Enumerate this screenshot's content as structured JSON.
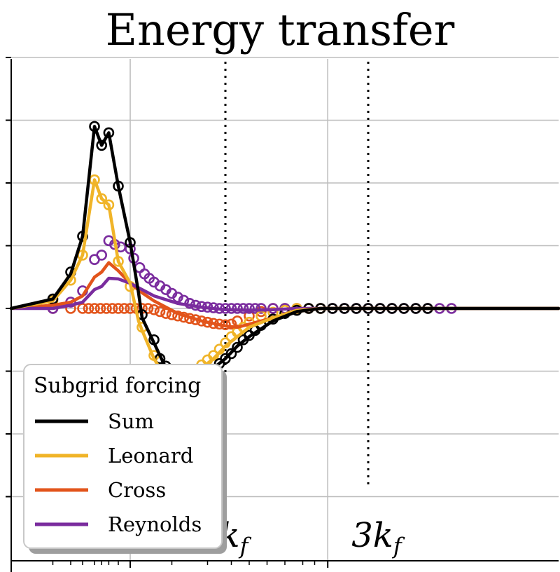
{
  "chart_data": {
    "type": "line",
    "title": "Energy transfer",
    "xscale": "log",
    "xlim": [
      1,
      5.6
    ],
    "ylim": [
      -3,
      4
    ],
    "grid": true,
    "legend": {
      "title": "Subgrid forcing",
      "placement": "bottom-left",
      "entries": [
        "Sum",
        "Leonard",
        "Cross",
        "Reynolds"
      ]
    },
    "vlines": [
      {
        "label_main": "k",
        "label_sub": "f",
        "x": 2.8
      },
      {
        "label_main": "3k",
        "label_sub": "f",
        "x": 4.0
      }
    ],
    "colors": {
      "Sum": "#000000",
      "Leonard": "#f0b428",
      "Cross": "#e2541b",
      "Reynolds": "#7a2c9e",
      "grid": "#bdbdbd"
    },
    "series": [
      {
        "name": "Sum",
        "line": [
          [
            1.0,
            0.0
          ],
          [
            1.35,
            0.15
          ],
          [
            1.5,
            0.55
          ],
          [
            1.6,
            1.15
          ],
          [
            1.7,
            2.9
          ],
          [
            1.76,
            2.6
          ],
          [
            1.82,
            2.8
          ],
          [
            1.9,
            1.95
          ],
          [
            2.0,
            1.05
          ],
          [
            2.07,
            0.25
          ],
          [
            2.1,
            -0.15
          ],
          [
            2.2,
            -0.55
          ],
          [
            2.3,
            -0.95
          ],
          [
            2.35,
            -1.0
          ],
          [
            2.4,
            -1.12
          ],
          [
            2.45,
            -1.15
          ],
          [
            2.5,
            -1.18
          ],
          [
            2.6,
            -1.1
          ],
          [
            2.7,
            -0.95
          ],
          [
            2.8,
            -0.8
          ],
          [
            2.9,
            -0.6
          ],
          [
            3.0,
            -0.45
          ],
          [
            3.2,
            -0.2
          ],
          [
            3.4,
            -0.05
          ],
          [
            3.6,
            0.0
          ],
          [
            4.0,
            0.0
          ],
          [
            5.6,
            0.0
          ]
        ],
        "points": [
          [
            1.35,
            0.15
          ],
          [
            1.5,
            0.58
          ],
          [
            1.6,
            1.15
          ],
          [
            1.7,
            2.9
          ],
          [
            1.76,
            2.6
          ],
          [
            1.82,
            2.8
          ],
          [
            1.9,
            1.95
          ],
          [
            2.0,
            1.05
          ],
          [
            2.1,
            -0.1
          ],
          [
            2.2,
            -0.5
          ],
          [
            2.25,
            -0.8
          ],
          [
            2.3,
            -0.92
          ],
          [
            2.35,
            -1.0
          ],
          [
            2.4,
            -1.1
          ],
          [
            2.45,
            -1.2
          ],
          [
            2.5,
            -1.18
          ],
          [
            2.55,
            -1.15
          ],
          [
            2.6,
            -1.12
          ],
          [
            2.65,
            -1.08
          ],
          [
            2.7,
            -0.97
          ],
          [
            2.75,
            -0.88
          ],
          [
            2.8,
            -0.8
          ],
          [
            2.85,
            -0.72
          ],
          [
            2.9,
            -0.62
          ],
          [
            2.95,
            -0.5
          ],
          [
            3.0,
            -0.43
          ],
          [
            3.05,
            -0.35
          ],
          [
            3.1,
            -0.27
          ],
          [
            3.2,
            -0.17
          ],
          [
            3.3,
            -0.08
          ],
          [
            3.4,
            -0.03
          ],
          [
            3.5,
            0.0
          ],
          [
            3.6,
            0.0
          ],
          [
            3.7,
            0.0
          ],
          [
            3.8,
            0.0
          ],
          [
            3.9,
            0.0
          ],
          [
            4.0,
            0.0
          ],
          [
            4.1,
            0.0
          ],
          [
            4.2,
            0.0
          ],
          [
            4.3,
            0.0
          ],
          [
            4.4,
            0.0
          ],
          [
            4.5,
            0.0
          ]
        ]
      },
      {
        "name": "Leonard",
        "line": [
          [
            1.0,
            0.0
          ],
          [
            1.35,
            0.12
          ],
          [
            1.5,
            0.45
          ],
          [
            1.6,
            0.85
          ],
          [
            1.7,
            2.05
          ],
          [
            1.76,
            1.75
          ],
          [
            1.82,
            1.65
          ],
          [
            1.9,
            0.75
          ],
          [
            2.0,
            0.4
          ],
          [
            2.07,
            -0.2
          ],
          [
            2.1,
            -0.35
          ],
          [
            2.2,
            -0.8
          ],
          [
            2.3,
            -1.12
          ],
          [
            2.35,
            -1.05
          ],
          [
            2.4,
            -1.15
          ],
          [
            2.45,
            -1.1
          ],
          [
            2.5,
            -1.05
          ],
          [
            2.6,
            -0.95
          ],
          [
            2.7,
            -0.8
          ],
          [
            2.8,
            -0.6
          ],
          [
            2.9,
            -0.45
          ],
          [
            3.0,
            -0.3
          ],
          [
            3.2,
            -0.15
          ],
          [
            3.4,
            -0.03
          ],
          [
            3.6,
            0.0
          ],
          [
            5.6,
            0.0
          ]
        ],
        "points": [
          [
            1.35,
            0.12
          ],
          [
            1.5,
            0.45
          ],
          [
            1.6,
            0.85
          ],
          [
            1.7,
            2.05
          ],
          [
            1.76,
            1.75
          ],
          [
            1.82,
            1.65
          ],
          [
            1.9,
            0.75
          ],
          [
            2.0,
            0.35
          ],
          [
            2.1,
            -0.3
          ],
          [
            2.2,
            -0.75
          ],
          [
            2.25,
            -0.95
          ],
          [
            2.3,
            -1.1
          ],
          [
            2.35,
            -1.12
          ],
          [
            2.4,
            -1.15
          ],
          [
            2.45,
            -1.08
          ],
          [
            2.5,
            -1.02
          ],
          [
            2.55,
            -0.98
          ],
          [
            2.6,
            -0.9
          ],
          [
            2.65,
            -0.82
          ],
          [
            2.7,
            -0.75
          ],
          [
            2.75,
            -0.65
          ],
          [
            2.8,
            -0.55
          ],
          [
            2.85,
            -0.45
          ],
          [
            2.9,
            -0.38
          ],
          [
            2.95,
            -0.3
          ],
          [
            3.0,
            -0.22
          ],
          [
            3.1,
            -0.12
          ],
          [
            3.2,
            -0.06
          ],
          [
            3.3,
            -0.03
          ],
          [
            3.4,
            0.0
          ],
          [
            3.5,
            0.0
          ],
          [
            3.6,
            0.0
          ]
        ]
      },
      {
        "name": "Cross",
        "line": [
          [
            1.0,
            0.0
          ],
          [
            1.35,
            0.05
          ],
          [
            1.5,
            0.1
          ],
          [
            1.6,
            0.2
          ],
          [
            1.7,
            0.5
          ],
          [
            1.76,
            0.58
          ],
          [
            1.82,
            0.73
          ],
          [
            1.9,
            0.6
          ],
          [
            2.0,
            0.4
          ],
          [
            2.1,
            0.25
          ],
          [
            2.2,
            0.12
          ],
          [
            2.4,
            -0.08
          ],
          [
            2.6,
            -0.2
          ],
          [
            2.8,
            -0.28
          ],
          [
            2.9,
            -0.3
          ],
          [
            3.0,
            -0.25
          ],
          [
            3.2,
            -0.15
          ],
          [
            3.4,
            -0.05
          ],
          [
            3.6,
            0.0
          ],
          [
            5.6,
            0.0
          ]
        ],
        "points": [
          [
            1.35,
            0.0
          ],
          [
            1.5,
            0.0
          ],
          [
            1.6,
            0.0
          ],
          [
            1.65,
            0.0
          ],
          [
            1.7,
            0.0
          ],
          [
            1.75,
            0.0
          ],
          [
            1.8,
            0.0
          ],
          [
            1.85,
            0.0
          ],
          [
            1.9,
            0.0
          ],
          [
            1.95,
            0.0
          ],
          [
            2.0,
            0.0
          ],
          [
            2.05,
            0.0
          ],
          [
            2.1,
            0.0
          ],
          [
            2.15,
            0.0
          ],
          [
            2.2,
            -0.02
          ],
          [
            2.25,
            -0.05
          ],
          [
            2.3,
            -0.08
          ],
          [
            2.35,
            -0.1
          ],
          [
            2.4,
            -0.12
          ],
          [
            2.45,
            -0.14
          ],
          [
            2.5,
            -0.16
          ],
          [
            2.55,
            -0.18
          ],
          [
            2.6,
            -0.2
          ],
          [
            2.65,
            -0.22
          ],
          [
            2.7,
            -0.24
          ],
          [
            2.75,
            -0.25
          ],
          [
            2.8,
            -0.26
          ],
          [
            2.85,
            -0.25
          ],
          [
            2.9,
            -0.2
          ],
          [
            3.0,
            -0.12
          ],
          [
            3.1,
            -0.05
          ],
          [
            3.2,
            0.0
          ],
          [
            3.3,
            0.0
          ],
          [
            3.4,
            0.0
          ]
        ]
      },
      {
        "name": "Reynolds",
        "line": [
          [
            1.0,
            0.0
          ],
          [
            1.35,
            0.0
          ],
          [
            1.5,
            0.05
          ],
          [
            1.6,
            0.1
          ],
          [
            1.7,
            0.3
          ],
          [
            1.76,
            0.35
          ],
          [
            1.82,
            0.48
          ],
          [
            1.9,
            0.47
          ],
          [
            2.0,
            0.4
          ],
          [
            2.1,
            0.3
          ],
          [
            2.2,
            0.2
          ],
          [
            2.4,
            0.08
          ],
          [
            2.6,
            0.02
          ],
          [
            2.8,
            -0.02
          ],
          [
            3.0,
            -0.03
          ],
          [
            3.2,
            -0.02
          ],
          [
            3.4,
            0.0
          ],
          [
            5.6,
            0.0
          ]
        ],
        "points": [
          [
            1.35,
            0.0
          ],
          [
            1.5,
            0.1
          ],
          [
            1.6,
            0.28
          ],
          [
            1.7,
            0.78
          ],
          [
            1.76,
            0.85
          ],
          [
            1.82,
            1.08
          ],
          [
            1.87,
            1.02
          ],
          [
            1.92,
            0.98
          ],
          [
            2.0,
            0.95
          ],
          [
            2.03,
            0.8
          ],
          [
            2.08,
            0.65
          ],
          [
            2.12,
            0.55
          ],
          [
            2.16,
            0.48
          ],
          [
            2.2,
            0.42
          ],
          [
            2.25,
            0.36
          ],
          [
            2.3,
            0.3
          ],
          [
            2.35,
            0.24
          ],
          [
            2.4,
            0.18
          ],
          [
            2.45,
            0.13
          ],
          [
            2.5,
            0.08
          ],
          [
            2.55,
            0.05
          ],
          [
            2.6,
            0.03
          ],
          [
            2.65,
            0.02
          ],
          [
            2.7,
            0.01
          ],
          [
            2.75,
            0.0
          ],
          [
            2.8,
            0.0
          ],
          [
            2.85,
            0.0
          ],
          [
            2.9,
            0.0
          ],
          [
            2.95,
            0.0
          ],
          [
            3.0,
            0.0
          ],
          [
            3.05,
            0.0
          ],
          [
            3.1,
            0.0
          ],
          [
            3.2,
            0.0
          ],
          [
            3.3,
            0.0
          ],
          [
            3.4,
            0.0
          ],
          [
            3.5,
            0.0
          ],
          [
            3.6,
            0.0
          ],
          [
            3.7,
            0.0
          ],
          [
            3.8,
            0.0
          ],
          [
            3.9,
            0.0
          ],
          [
            4.0,
            0.0
          ],
          [
            4.1,
            0.0
          ],
          [
            4.2,
            0.0
          ],
          [
            4.3,
            0.0
          ],
          [
            4.4,
            0.0
          ],
          [
            4.5,
            0.0
          ],
          [
            4.6,
            0.0
          ],
          [
            4.7,
            0.0
          ]
        ]
      }
    ]
  }
}
